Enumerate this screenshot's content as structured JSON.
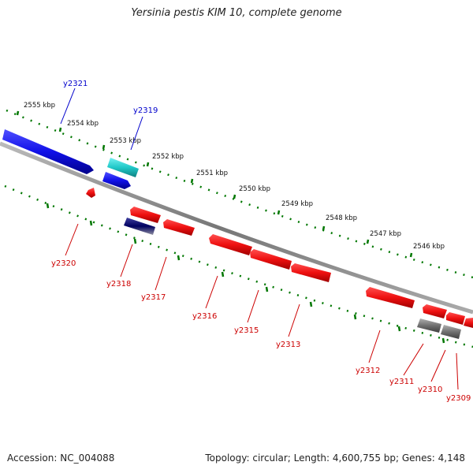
{
  "title": "Yersinia pestis KIM 10, complete genome",
  "footer": {
    "accession": "Accession: NC_004088",
    "topology": "Topology: circular; Length: 4,600,755 bp; Genes: 4,148"
  },
  "colors": {
    "forward_gene": "#1010e8",
    "forward_gene_alt": "#20c8c8",
    "reverse_gene": "#ee1010",
    "pseudo_gene": "#707070",
    "backbone": "#888888",
    "ticks": "#007700",
    "label_forward": "#0000cc",
    "label_reverse": "#cc0000"
  },
  "scale_labels": [
    "2555 kbp",
    "2554 kbp",
    "2553 kbp",
    "2552 kbp",
    "2551 kbp",
    "2550 kbp",
    "2549 kbp",
    "2548 kbp",
    "2547 kbp",
    "2546 kbp"
  ],
  "gene_labels": {
    "forward": [
      "y2321",
      "y2319"
    ],
    "reverse": [
      "y2320",
      "y2318",
      "y2317",
      "y2316",
      "y2315",
      "y2313",
      "y2312",
      "y2311",
      "y2310",
      "y2309"
    ]
  }
}
